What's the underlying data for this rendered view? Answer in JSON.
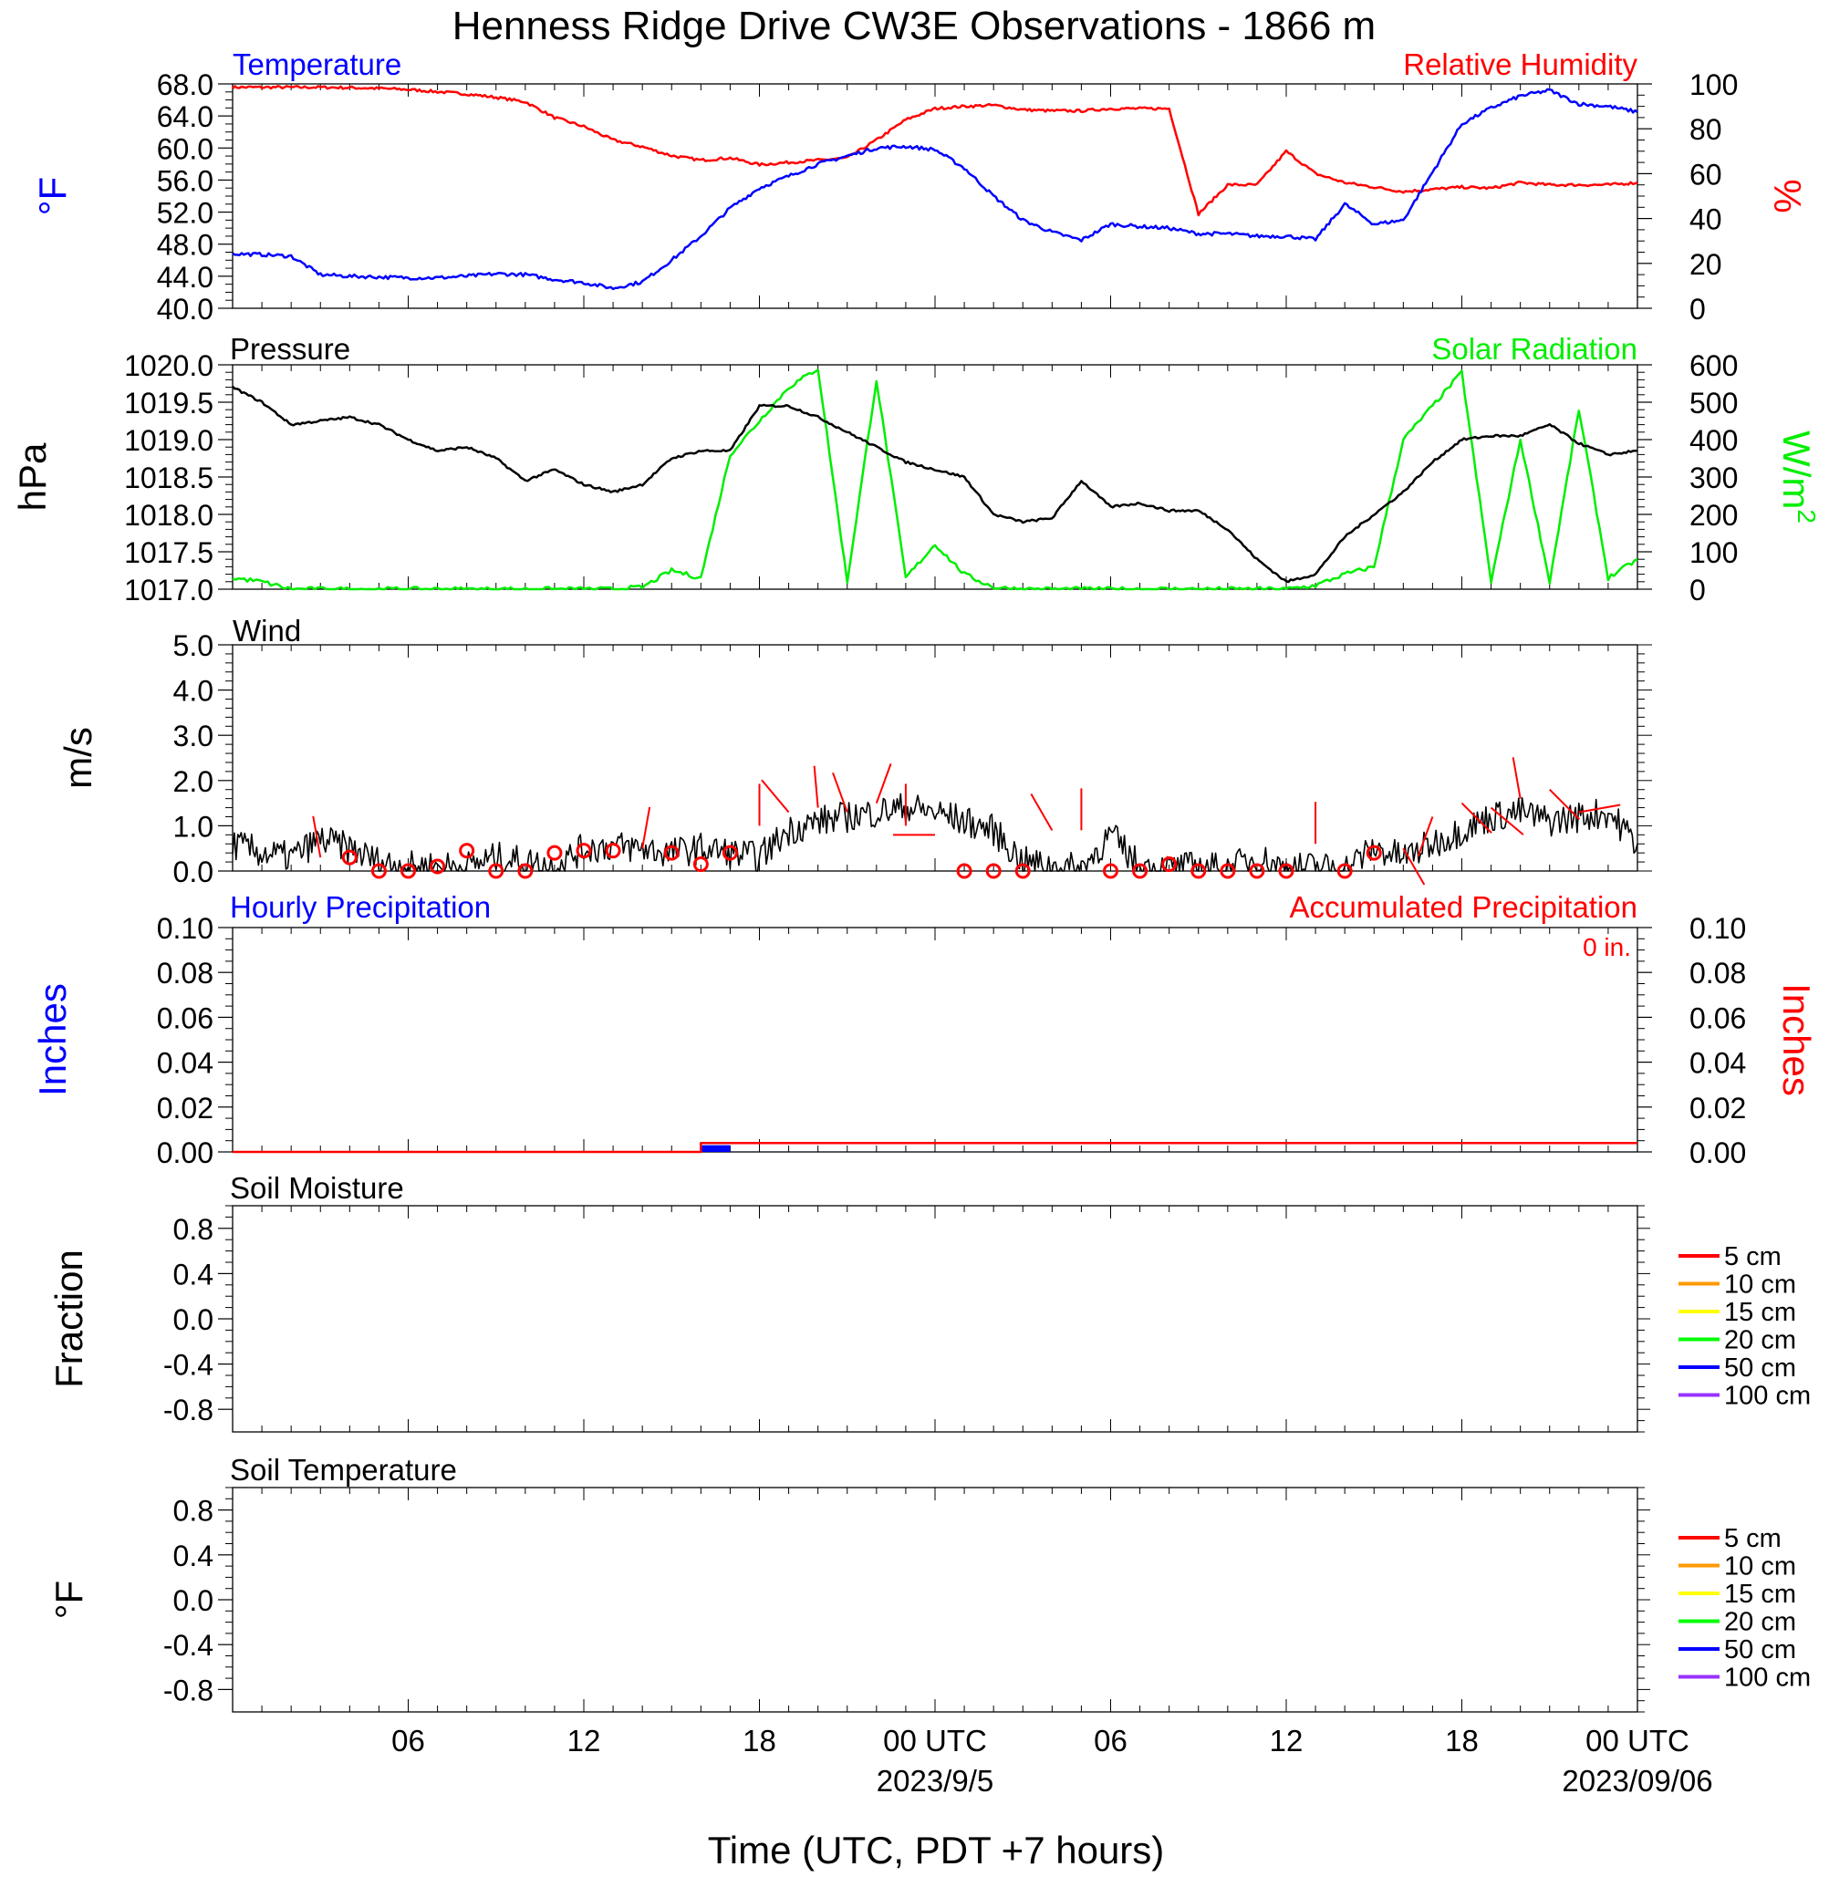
{
  "figure": {
    "title": "Henness Ridge Drive CW3E Observations - 1866 m",
    "xlabel": "Time (UTC, PDT +7 hours)",
    "x_tick_labels": [
      "06",
      "12",
      "18",
      "00 UTC",
      "06",
      "12",
      "18",
      "00 UTC"
    ],
    "date_labels": [
      "2023/9/5",
      "2023/09/06"
    ]
  },
  "chart_data": [
    {
      "id": "temp_rh",
      "type": "line",
      "left_title": "Temperature",
      "right_title": "Relative Humidity",
      "left_axis_label": "°F",
      "right_axis_label": "%",
      "ylim_left": [
        40,
        68
      ],
      "ylim_right": [
        0,
        100
      ],
      "left_tick_labels": [
        "40.0",
        "44.0",
        "48.0",
        "52.0",
        "56.0",
        "60.0",
        "64.0",
        "68.0"
      ],
      "right_tick_labels": [
        "0",
        "20",
        "40",
        "60",
        "80",
        "100"
      ],
      "x_hours": [
        0,
        1,
        2,
        3,
        4,
        5,
        6,
        7,
        8,
        9,
        10,
        11,
        12,
        13,
        14,
        15,
        16,
        17,
        18,
        19,
        20,
        21,
        22,
        23,
        24,
        25,
        26,
        27,
        28,
        29,
        30,
        31,
        32,
        33,
        34,
        35,
        36,
        37,
        38,
        39,
        40,
        41,
        42,
        43,
        44,
        45,
        46,
        47,
        48
      ],
      "series": [
        {
          "name": "Temperature",
          "color": "#0000ff",
          "axis": "left",
          "values": [
            46.8,
            46.7,
            46.5,
            44.2,
            44.0,
            43.9,
            43.8,
            43.8,
            44.0,
            44.3,
            44.2,
            43.6,
            43.2,
            42.5,
            43.3,
            46.0,
            49.0,
            52.5,
            55.0,
            56.5,
            58.0,
            59.0,
            60.0,
            60.2,
            59.8,
            57.5,
            54.0,
            51.0,
            49.5,
            48.5,
            50.5,
            50.2,
            50.0,
            49.3,
            49.3,
            49.0,
            49.0,
            48.6,
            53.0,
            50.5,
            51.0,
            57.0,
            63.0,
            65.0,
            66.5,
            67.2,
            65.5,
            65.2,
            64.5
          ]
        },
        {
          "name": "Relative Humidity",
          "color": "#ff0000",
          "axis": "right",
          "values": [
            98.5,
            98.5,
            98.5,
            98.5,
            98.3,
            98.0,
            97.5,
            96.5,
            95.5,
            94.0,
            92.0,
            85.0,
            81.0,
            75.0,
            72.0,
            68.0,
            66.0,
            67.0,
            64.0,
            65.0,
            66.0,
            67.0,
            75.0,
            84.0,
            89.0,
            90.0,
            90.5,
            88.5,
            88.0,
            88.0,
            89.0,
            89.0,
            89.0,
            42.0,
            55.0,
            55.0,
            70.0,
            60.0,
            56.0,
            54.0,
            52.0,
            53.0,
            54.0,
            53.5,
            56.0,
            55.0,
            55.0,
            55.0,
            56.0
          ]
        }
      ]
    },
    {
      "id": "pressure_solar",
      "type": "line",
      "left_title": "Pressure",
      "right_title": "Solar Radiation",
      "left_axis_label": "hPa",
      "right_axis_label": "W/m2",
      "ylim_left": [
        1017.0,
        1020.0
      ],
      "ylim_right": [
        0,
        600
      ],
      "left_tick_labels": [
        "1017.0",
        "1017.5",
        "1018.0",
        "1018.5",
        "1019.0",
        "1019.5",
        "1020.0"
      ],
      "right_tick_labels": [
        "0",
        "100",
        "200",
        "300",
        "400",
        "500",
        "600"
      ],
      "x_hours": [
        0,
        1,
        2,
        3,
        4,
        5,
        6,
        7,
        8,
        9,
        10,
        11,
        12,
        13,
        14,
        15,
        16,
        17,
        18,
        19,
        20,
        21,
        22,
        23,
        24,
        25,
        26,
        27,
        28,
        29,
        30,
        31,
        32,
        33,
        34,
        35,
        36,
        37,
        38,
        39,
        40,
        41,
        42,
        43,
        44,
        45,
        46,
        47,
        48
      ],
      "series": [
        {
          "name": "Pressure",
          "color": "#000000",
          "axis": "left",
          "values": [
            1019.7,
            1019.5,
            1019.2,
            1019.25,
            1019.3,
            1019.2,
            1019.0,
            1018.85,
            1018.9,
            1018.75,
            1018.45,
            1018.6,
            1018.4,
            1018.3,
            1018.4,
            1018.75,
            1018.85,
            1018.85,
            1019.45,
            1019.45,
            1019.3,
            1019.1,
            1018.9,
            1018.7,
            1018.6,
            1018.5,
            1018.0,
            1017.9,
            1017.95,
            1018.45,
            1018.1,
            1018.15,
            1018.05,
            1018.05,
            1017.8,
            1017.4,
            1017.1,
            1017.2,
            1017.7,
            1018.0,
            1018.3,
            1018.7,
            1019.0,
            1019.05,
            1019.05,
            1019.2,
            1018.95,
            1018.8,
            1018.85
          ]
        },
        {
          "name": "Solar Radiation",
          "color": "#00ee00",
          "axis": "right",
          "values": [
            30,
            20,
            0,
            0,
            0,
            0,
            0,
            0,
            0,
            0,
            0,
            0,
            0,
            0,
            5,
            50,
            30,
            360,
            450,
            540,
            590,
            20,
            560,
            30,
            120,
            40,
            5,
            0,
            0,
            0,
            0,
            0,
            0,
            0,
            0,
            0,
            0,
            10,
            40,
            60,
            400,
            490,
            580,
            20,
            400,
            20,
            480,
            30,
            80
          ]
        }
      ]
    },
    {
      "id": "wind",
      "type": "line",
      "left_title": "Wind",
      "left_axis_label": "m/s",
      "ylim": [
        0,
        5
      ],
      "tick_labels": [
        "0.0",
        "1.0",
        "2.0",
        "3.0",
        "4.0",
        "5.0"
      ],
      "x_hours": [
        0,
        1,
        2,
        3,
        4,
        5,
        6,
        7,
        8,
        9,
        10,
        11,
        12,
        13,
        14,
        15,
        16,
        17,
        18,
        19,
        20,
        21,
        22,
        23,
        24,
        25,
        26,
        27,
        28,
        29,
        30,
        31,
        32,
        33,
        34,
        35,
        36,
        37,
        38,
        39,
        40,
        41,
        42,
        43,
        44,
        45,
        46,
        47,
        48
      ],
      "series": [
        {
          "name": "Wind speed",
          "color": "#000000",
          "values": [
            0.6,
            0.4,
            0.3,
            0.7,
            0.5,
            0.2,
            0.1,
            0.1,
            0.1,
            0.3,
            0.2,
            0.1,
            0.5,
            0.55,
            0.5,
            0.4,
            0.5,
            0.4,
            0.3,
            0.9,
            1.1,
            1.2,
            1.3,
            1.4,
            1.3,
            1.1,
            0.9,
            0.2,
            0.1,
            0.05,
            0.8,
            0.1,
            0.05,
            0.1,
            0.05,
            0.3,
            0.05,
            0.1,
            0.05,
            0.5,
            0.3,
            0.6,
            0.9,
            1.2,
            1.3,
            1.1,
            1.2,
            1.3,
            0.6
          ]
        }
      ],
      "barbs": [
        {
          "hour": 3,
          "speed": 0.3,
          "dir_deg": 350
        },
        {
          "hour": 4,
          "speed": 0.3
        },
        {
          "hour": 5,
          "speed": 0.0
        },
        {
          "hour": 6,
          "speed": 0.0
        },
        {
          "hour": 7,
          "speed": 0.1
        },
        {
          "hour": 8,
          "speed": 0.45
        },
        {
          "hour": 9,
          "speed": 0.0
        },
        {
          "hour": 10,
          "speed": 0.0
        },
        {
          "hour": 11,
          "speed": 0.4
        },
        {
          "hour": 12,
          "speed": 0.45
        },
        {
          "hour": 13,
          "speed": 0.45
        },
        {
          "hour": 14,
          "speed": 0.5,
          "dir_deg": 10
        },
        {
          "hour": 15,
          "speed": 0.4
        },
        {
          "hour": 16,
          "speed": 0.15
        },
        {
          "hour": 17,
          "speed": 0.4
        },
        {
          "hour": 18,
          "speed": 1.0,
          "dir_deg": 0
        },
        {
          "hour": 19,
          "speed": 1.3,
          "dir_deg": 320
        },
        {
          "hour": 20,
          "speed": 1.4,
          "dir_deg": 355
        },
        {
          "hour": 21,
          "speed": 1.3,
          "dir_deg": 340
        },
        {
          "hour": 22,
          "speed": 1.5,
          "dir_deg": 20
        },
        {
          "hour": 23,
          "speed": 1.0,
          "dir_deg": 0
        },
        {
          "hour": 24,
          "speed": 0.8,
          "dir_deg": 270
        },
        {
          "hour": 25,
          "speed": 0.0
        },
        {
          "hour": 26,
          "speed": 0.0
        },
        {
          "hour": 27,
          "speed": 0.0
        },
        {
          "hour": 28,
          "speed": 0.9,
          "dir_deg": 330
        },
        {
          "hour": 29,
          "speed": 0.9,
          "dir_deg": 0
        },
        {
          "hour": 30,
          "speed": 0.0
        },
        {
          "hour": 31,
          "speed": 0.0
        },
        {
          "hour": 32,
          "speed": 0.15
        },
        {
          "hour": 33,
          "speed": 0.0
        },
        {
          "hour": 34,
          "speed": 0.0
        },
        {
          "hour": 35,
          "speed": 0.0
        },
        {
          "hour": 36,
          "speed": 0.0
        },
        {
          "hour": 37,
          "speed": 0.6,
          "dir_deg": 0
        },
        {
          "hour": 38,
          "speed": 0.0
        },
        {
          "hour": 39,
          "speed": 0.4
        },
        {
          "hour": 40,
          "speed": 0.5,
          "dir_deg": 150
        },
        {
          "hour": 41,
          "speed": 1.2,
          "dir_deg": 200
        },
        {
          "hour": 42,
          "speed": 1.5,
          "dir_deg": 135
        },
        {
          "hour": 43,
          "speed": 1.4,
          "dir_deg": 130
        },
        {
          "hour": 44,
          "speed": 1.6,
          "dir_deg": 350
        },
        {
          "hour": 45,
          "speed": 1.8,
          "dir_deg": 135
        },
        {
          "hour": 46,
          "speed": 1.3,
          "dir_deg": 80
        }
      ]
    },
    {
      "id": "precip",
      "type": "bar",
      "left_title": "Hourly Precipitation",
      "right_title": "Accumulated Precipitation",
      "annotation": "0 in.",
      "left_axis_label": "Inches",
      "right_axis_label": "Inches",
      "ylim": [
        0,
        0.1
      ],
      "tick_labels": [
        "0.00",
        "0.02",
        "0.04",
        "0.06",
        "0.08",
        "0.10"
      ],
      "hourly": [
        {
          "hour": 16,
          "value": 0.003,
          "color": "#0000ff"
        }
      ],
      "accumulated": {
        "color": "#ff0000",
        "x_hours": [
          0,
          16,
          16,
          48
        ],
        "values": [
          0,
          0,
          0.004,
          0.004
        ]
      }
    },
    {
      "id": "soil_moisture",
      "type": "line",
      "left_title": "Soil Moisture",
      "left_axis_label": "Fraction",
      "ylim": [
        -1,
        1
      ],
      "tick_labels": [
        "-0.8",
        "-0.4",
        "0.0",
        "0.4",
        "0.8"
      ],
      "legend": [
        {
          "label": "5 cm",
          "color": "#ff0000"
        },
        {
          "label": "10 cm",
          "color": "#ff9900"
        },
        {
          "label": "15 cm",
          "color": "#ffff00"
        },
        {
          "label": "20 cm",
          "color": "#00ff00"
        },
        {
          "label": "50 cm",
          "color": "#0000ff"
        },
        {
          "label": "100 cm",
          "color": "#9933ff"
        }
      ],
      "legend_position": "right",
      "series": []
    },
    {
      "id": "soil_temp",
      "type": "line",
      "left_title": "Soil Temperature",
      "left_axis_label": "°F",
      "ylim": [
        -1,
        1
      ],
      "tick_labels": [
        "-0.8",
        "-0.4",
        "0.0",
        "0.4",
        "0.8"
      ],
      "legend": [
        {
          "label": "5 cm",
          "color": "#ff0000"
        },
        {
          "label": "10 cm",
          "color": "#ff9900"
        },
        {
          "label": "15 cm",
          "color": "#ffff00"
        },
        {
          "label": "20 cm",
          "color": "#00ff00"
        },
        {
          "label": "50 cm",
          "color": "#0000ff"
        },
        {
          "label": "100 cm",
          "color": "#9933ff"
        }
      ],
      "legend_position": "right",
      "series": []
    }
  ]
}
